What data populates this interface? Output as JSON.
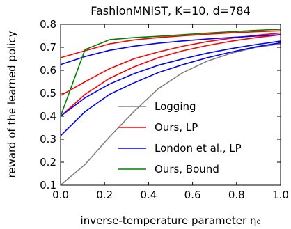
{
  "chart_data": {
    "type": "line",
    "title": "FashionMNIST, K=10, d=784",
    "xlabel": "inverse-temperature parameter η₀",
    "ylabel": "reward of the learned policy",
    "xlim": [
      0.0,
      1.0
    ],
    "ylim": [
      0.1,
      0.8
    ],
    "xticks": [
      "0.0",
      "0.2",
      "0.4",
      "0.6",
      "0.8",
      "1.0"
    ],
    "yticks": [
      "0.1",
      "0.2",
      "0.3",
      "0.4",
      "0.5",
      "0.6",
      "0.7",
      "0.8"
    ],
    "legend_position": "lower-right",
    "grid": false,
    "series": [
      {
        "name": "Logging",
        "color": "#808080",
        "x": [
          0.0,
          0.111,
          0.222,
          0.333,
          0.444,
          0.556,
          0.667,
          0.778,
          0.889,
          1.0
        ],
        "y": [
          0.1,
          0.19,
          0.31,
          0.42,
          0.52,
          0.59,
          0.64,
          0.675,
          0.7,
          0.715
        ]
      },
      {
        "name": "Ours, LP",
        "color": "#ff0000",
        "x": [
          0.0,
          0.111,
          0.222,
          0.333,
          0.444,
          0.556,
          0.667,
          0.778,
          0.889,
          1.0
        ],
        "y": [
          0.655,
          0.685,
          0.715,
          0.732,
          0.742,
          0.75,
          0.757,
          0.763,
          0.768,
          0.772
        ]
      },
      {
        "name": "",
        "color": "#ff0000",
        "x": [
          0.0,
          0.111,
          0.222,
          0.333,
          0.444,
          0.556,
          0.667,
          0.778,
          0.889,
          1.0
        ],
        "y": [
          0.49,
          0.55,
          0.607,
          0.65,
          0.68,
          0.705,
          0.725,
          0.74,
          0.752,
          0.762
        ]
      },
      {
        "name": "",
        "color": "#ff0000",
        "x": [
          0.0,
          0.111,
          0.222,
          0.333,
          0.444,
          0.556,
          0.667,
          0.778,
          0.889,
          1.0
        ],
        "y": [
          0.4,
          0.495,
          0.565,
          0.615,
          0.655,
          0.685,
          0.708,
          0.727,
          0.742,
          0.755
        ]
      },
      {
        "name": "London et al., LP",
        "color": "#0000ff",
        "x": [
          0.0,
          0.111,
          0.222,
          0.333,
          0.444,
          0.556,
          0.667,
          0.778,
          0.889,
          1.0
        ],
        "y": [
          0.625,
          0.66,
          0.687,
          0.705,
          0.718,
          0.728,
          0.736,
          0.743,
          0.749,
          0.755
        ]
      },
      {
        "name": "",
        "color": "#0000ff",
        "x": [
          0.0,
          0.111,
          0.222,
          0.333,
          0.444,
          0.556,
          0.667,
          0.778,
          0.889,
          1.0
        ],
        "y": [
          0.4,
          0.48,
          0.54,
          0.585,
          0.622,
          0.65,
          0.675,
          0.695,
          0.712,
          0.727
        ]
      },
      {
        "name": "",
        "color": "#0000ff",
        "x": [
          0.0,
          0.111,
          0.222,
          0.333,
          0.444,
          0.556,
          0.667,
          0.778,
          0.889,
          1.0
        ],
        "y": [
          0.315,
          0.42,
          0.495,
          0.545,
          0.59,
          0.625,
          0.655,
          0.68,
          0.702,
          0.72
        ]
      },
      {
        "name": "Ours, Bound",
        "color": "#008000",
        "x": [
          0.0,
          0.111,
          0.222,
          0.333,
          0.444,
          0.556,
          0.667,
          0.778,
          0.889,
          1.0
        ],
        "y": [
          0.4,
          0.69,
          0.733,
          0.742,
          0.748,
          0.755,
          0.762,
          0.768,
          0.774,
          0.779
        ]
      }
    ]
  }
}
